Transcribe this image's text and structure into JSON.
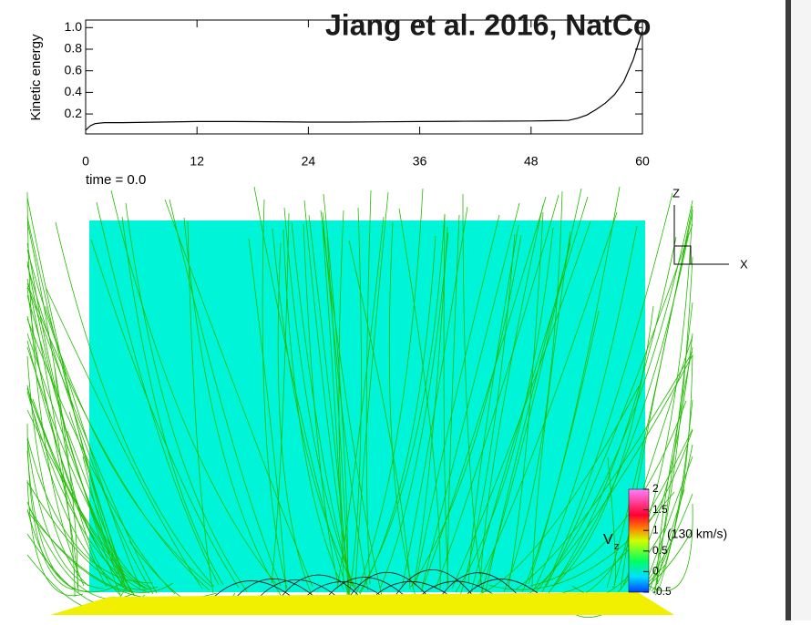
{
  "chart_data": {
    "type": "line",
    "title": "Jiang et al. 2016, NatCo",
    "ylabel": "Kinetic energy",
    "x": [
      0,
      0.5,
      1,
      2,
      4,
      8,
      12,
      16,
      20,
      24,
      28,
      32,
      36,
      40,
      44,
      48,
      50,
      52,
      53,
      54,
      55,
      56,
      57,
      58,
      59,
      60
    ],
    "values": [
      0.05,
      0.09,
      0.11,
      0.12,
      0.12,
      0.125,
      0.13,
      0.13,
      0.128,
      0.125,
      0.125,
      0.127,
      0.13,
      0.132,
      0.133,
      0.135,
      0.137,
      0.14,
      0.16,
      0.19,
      0.24,
      0.3,
      0.38,
      0.5,
      0.7,
      0.97
    ],
    "color": "#000000",
    "xlim": [
      0,
      60
    ],
    "xticks": [
      0,
      12,
      24,
      36,
      48,
      60
    ],
    "ylim": [
      0.015,
      1.07
    ],
    "yticks": [
      0.2,
      0.4,
      0.6,
      0.8,
      {
        "value": 1,
        "label": "1.0"
      }
    ]
  },
  "simulation": {
    "time_label": "time =  0.0",
    "axis_z": "Z",
    "axis_x": "X",
    "colorbar": {
      "label": "V",
      "subscript": "z",
      "unit": "(130 km/s)",
      "ticks": [
        2,
        1.5,
        1,
        0.5,
        0,
        -0.5
      ]
    }
  }
}
